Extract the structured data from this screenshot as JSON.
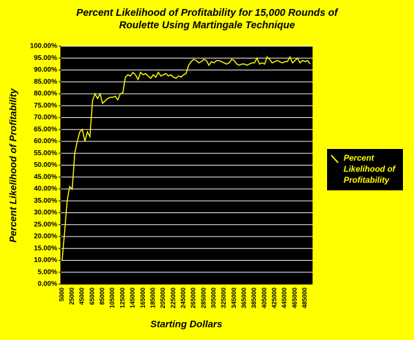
{
  "chart_data": {
    "type": "line",
    "title": "Percent Likelihood of Profitability for 15,000 Rounds of Roulette Using Martingale Technique",
    "x_label": "Starting Dollars",
    "y_label": "Percent Likelihood of Profitability",
    "categories": [
      "5000",
      null,
      null,
      null,
      "25000",
      null,
      null,
      null,
      "45000",
      null,
      null,
      null,
      "65000",
      null,
      null,
      null,
      "85000",
      null,
      null,
      null,
      "105000",
      null,
      null,
      null,
      "125000",
      null,
      null,
      null,
      "145000",
      null,
      null,
      null,
      "165000",
      null,
      null,
      null,
      "185000",
      null,
      null,
      null,
      "205000",
      null,
      null,
      null,
      "225000",
      null,
      null,
      null,
      "245000",
      null,
      null,
      null,
      "265000",
      null,
      null,
      null,
      "285000",
      null,
      null,
      null,
      "305000",
      null,
      null,
      null,
      "325000",
      null,
      null,
      null,
      "345000",
      null,
      null,
      null,
      "365000",
      null,
      null,
      null,
      "385000",
      null,
      null,
      null,
      "405000",
      null,
      null,
      null,
      "425000",
      null,
      null,
      null,
      "445000",
      null,
      null,
      null,
      "465000",
      null,
      null,
      null,
      "485000",
      null,
      null
    ],
    "series": [
      {
        "name": "Percent Likelihood of Profitability",
        "color": "#ffff00",
        "values": [
          10,
          22,
          35,
          41,
          40,
          55,
          60,
          64,
          65,
          60,
          64,
          62,
          77,
          80,
          78,
          80,
          76,
          77,
          78,
          78.5,
          78.5,
          79,
          77.5,
          80,
          80.5,
          87,
          88,
          87.5,
          89,
          88,
          86,
          89,
          88,
          88.5,
          87.5,
          86.5,
          88,
          87,
          89,
          87.5,
          88,
          88.5,
          87.5,
          88,
          87,
          86.5,
          87.5,
          87,
          88,
          88.5,
          92,
          93.5,
          94.5,
          94,
          93,
          93.5,
          94.5,
          94,
          92,
          93.5,
          93,
          94,
          94,
          93.5,
          93,
          92.5,
          93,
          94.5,
          94,
          92.5,
          92,
          92.5,
          92.5,
          92,
          92.5,
          93,
          93,
          95,
          92.5,
          93,
          92.5,
          95.5,
          94.5,
          93,
          93.5,
          94,
          93.5,
          93,
          93.5,
          93.5,
          95.5,
          93,
          94,
          95,
          93,
          94,
          93.5,
          94,
          92.5
        ]
      }
    ],
    "ylim": [
      0,
      100
    ],
    "yticks": [
      {
        "value": 0,
        "label": "0.00%"
      },
      {
        "value": 5,
        "label": "5.00%"
      },
      {
        "value": 10,
        "label": "10.00%"
      },
      {
        "value": 15,
        "label": "15.00%"
      },
      {
        "value": 20,
        "label": "20.00%"
      },
      {
        "value": 25,
        "label": "25.00%"
      },
      {
        "value": 30,
        "label": "30.00%"
      },
      {
        "value": 35,
        "label": "35.00%"
      },
      {
        "value": 40,
        "label": "40.00%"
      },
      {
        "value": 45,
        "label": "45.00%"
      },
      {
        "value": 50,
        "label": "50.00%"
      },
      {
        "value": 55,
        "label": "55.00%"
      },
      {
        "value": 60,
        "label": "60.00%"
      },
      {
        "value": 65,
        "label": "65.00%"
      },
      {
        "value": 70,
        "label": "70.00%"
      },
      {
        "value": 75,
        "label": "75.00%"
      },
      {
        "value": 80,
        "label": "80.00%"
      },
      {
        "value": 85,
        "label": "85.00%"
      },
      {
        "value": 90,
        "label": "90.00%"
      },
      {
        "value": 95,
        "label": "95.00%"
      },
      {
        "value": 100,
        "label": "100.00%"
      }
    ],
    "grid": true,
    "legend": "right"
  }
}
